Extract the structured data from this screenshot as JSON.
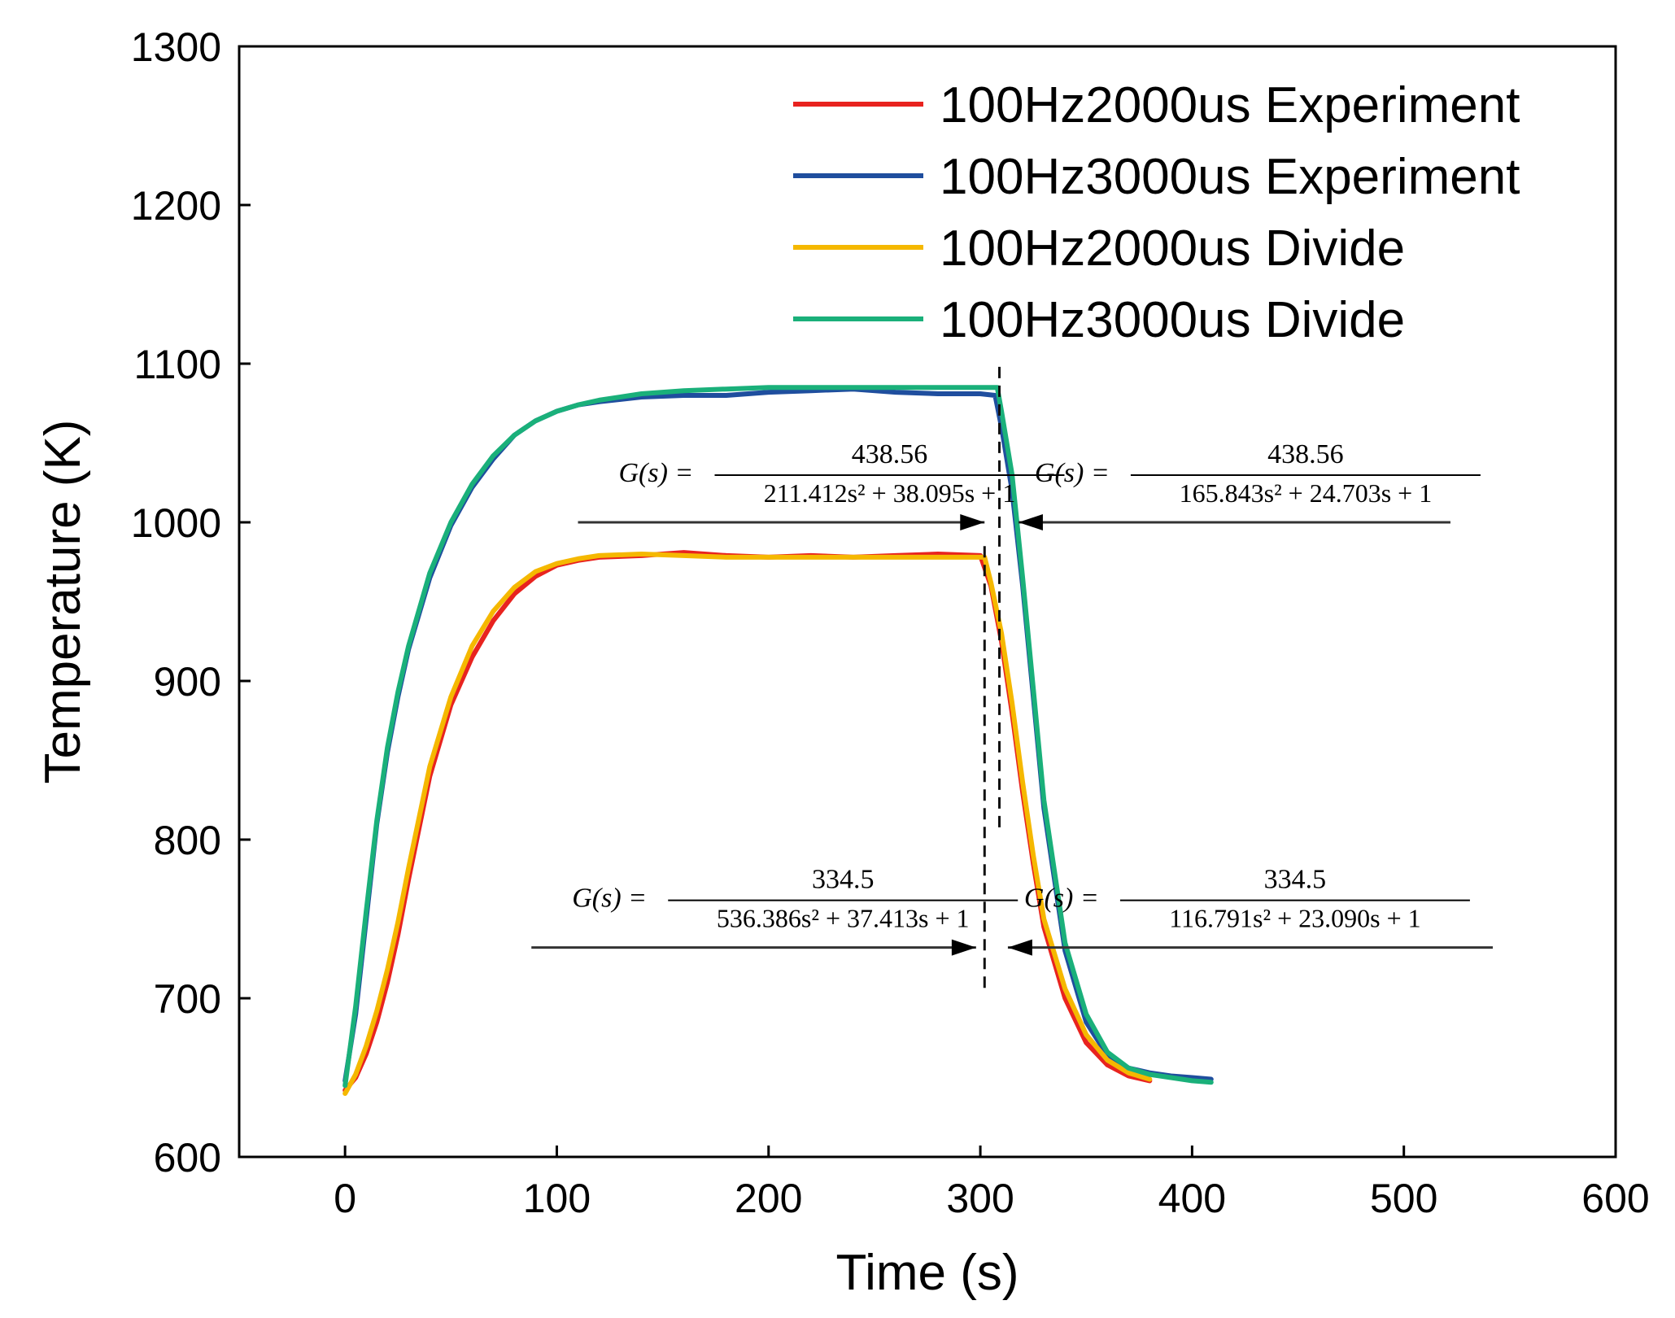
{
  "chart_data": {
    "type": "line",
    "title": "",
    "xlabel": "Time (s)",
    "ylabel": "Temperature (K)",
    "xlim": [
      -50,
      600
    ],
    "ylim": [
      600,
      1300
    ],
    "xticks": [
      0,
      100,
      200,
      300,
      400,
      500,
      600
    ],
    "yticks": [
      600,
      700,
      800,
      900,
      1000,
      1100,
      1200,
      1300
    ],
    "grid": false,
    "legend_position": "top-right",
    "series": [
      {
        "name": "100Hz2000us Experiment",
        "color": "#e8231f",
        "x": [
          0,
          5,
          10,
          15,
          20,
          25,
          30,
          40,
          50,
          60,
          70,
          80,
          90,
          100,
          110,
          120,
          140,
          160,
          180,
          200,
          220,
          240,
          260,
          280,
          300,
          305,
          310,
          315,
          320,
          325,
          330,
          340,
          350,
          360,
          370,
          380
        ],
        "y": [
          642,
          650,
          665,
          685,
          710,
          740,
          775,
          840,
          885,
          915,
          938,
          955,
          966,
          973,
          976,
          978,
          979,
          981,
          979,
          978,
          979,
          978,
          979,
          980,
          979,
          960,
          925,
          880,
          830,
          785,
          745,
          700,
          672,
          658,
          651,
          648
        ]
      },
      {
        "name": "100Hz3000us Experiment",
        "color": "#1f4e9e",
        "x": [
          0,
          5,
          10,
          15,
          20,
          25,
          30,
          40,
          50,
          60,
          70,
          80,
          90,
          100,
          110,
          120,
          140,
          160,
          180,
          200,
          220,
          240,
          260,
          280,
          300,
          307,
          310,
          315,
          320,
          325,
          330,
          340,
          350,
          360,
          370,
          380,
          390,
          400,
          409
        ],
        "y": [
          648,
          690,
          750,
          810,
          855,
          890,
          920,
          965,
          998,
          1022,
          1040,
          1055,
          1064,
          1070,
          1074,
          1076,
          1079,
          1080,
          1080,
          1082,
          1083,
          1084,
          1082,
          1081,
          1081,
          1080,
          1060,
          1020,
          960,
          890,
          820,
          730,
          685,
          664,
          656,
          653,
          651,
          650,
          649
        ]
      },
      {
        "name": "100Hz2000us Divide",
        "color": "#f5b800",
        "x": [
          0,
          5,
          10,
          15,
          20,
          25,
          30,
          40,
          50,
          60,
          70,
          80,
          90,
          100,
          110,
          120,
          140,
          160,
          180,
          200,
          220,
          240,
          260,
          280,
          302,
          305,
          310,
          315,
          320,
          325,
          330,
          340,
          350,
          360,
          370,
          380
        ],
        "y": [
          640,
          652,
          670,
          692,
          718,
          748,
          782,
          846,
          890,
          922,
          944,
          959,
          969,
          974,
          977,
          979,
          980,
          979,
          978,
          978,
          978,
          978,
          978,
          978,
          978,
          962,
          930,
          886,
          836,
          790,
          750,
          706,
          677,
          661,
          653,
          649
        ]
      },
      {
        "name": "100Hz3000us Divide",
        "color": "#1ab07a",
        "x": [
          0,
          5,
          10,
          15,
          20,
          25,
          30,
          40,
          50,
          60,
          70,
          80,
          90,
          100,
          110,
          120,
          140,
          160,
          180,
          200,
          220,
          240,
          260,
          280,
          308,
          310,
          315,
          320,
          325,
          330,
          340,
          350,
          360,
          370,
          380,
          390,
          400,
          409
        ],
        "y": [
          645,
          695,
          755,
          812,
          858,
          893,
          922,
          968,
          1000,
          1024,
          1042,
          1055,
          1064,
          1070,
          1074,
          1077,
          1081,
          1083,
          1084,
          1085,
          1085,
          1085,
          1085,
          1085,
          1085,
          1070,
          1030,
          965,
          895,
          825,
          735,
          690,
          666,
          656,
          652,
          650,
          648,
          647
        ]
      }
    ],
    "annotations": [
      {
        "label": "G(s) =",
        "numerator": "438.56",
        "denominator": "211.412s² + 38.095s + 1",
        "arrow_y": 1000,
        "arrow_x_range": [
          110,
          302
        ],
        "side": "left"
      },
      {
        "label": "G(s) =",
        "numerator": "438.56",
        "denominator": "165.843s² + 24.703s + 1",
        "arrow_y": 1000,
        "arrow_x_range": [
          318,
          522
        ],
        "side": "right"
      },
      {
        "label": "G(s) =",
        "numerator": "334.5",
        "denominator": "536.386s² + 37.413s + 1",
        "arrow_y": 732,
        "arrow_x_range": [
          88,
          298
        ],
        "side": "left"
      },
      {
        "label": "G(s) =",
        "numerator": "334.5",
        "denominator": "116.791s² + 23.090s + 1",
        "arrow_y": 732,
        "arrow_x_range": [
          313,
          542
        ],
        "side": "right"
      }
    ],
    "dashed_lines": [
      {
        "x": 309,
        "y_range": [
          805,
          1098
        ]
      },
      {
        "x": 302,
        "y_range": [
          705,
          985
        ]
      }
    ]
  }
}
